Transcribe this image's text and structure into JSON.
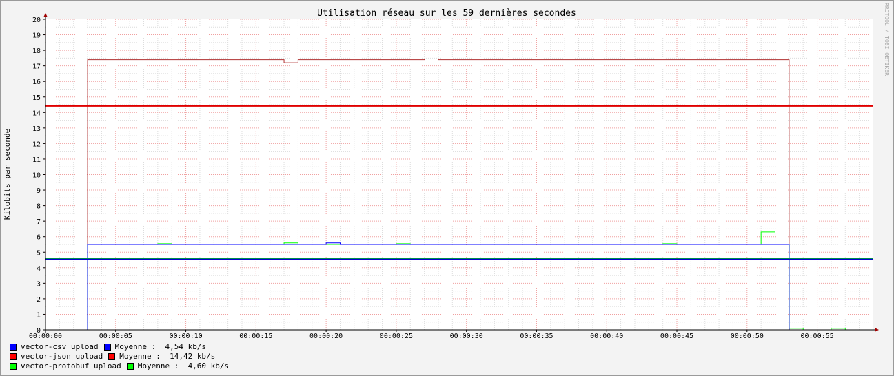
{
  "chart_data": {
    "type": "line",
    "title": "Utilisation réseau sur les 59 dernières secondes",
    "ylabel": "Kilobits par seconde",
    "watermark": "RRDTOOL / TOBI OETIKER",
    "ylim": [
      0,
      20
    ],
    "xlim_seconds": [
      0,
      59
    ],
    "y_ticks": [
      "0",
      "1",
      "2",
      "3",
      "4",
      "5",
      "6",
      "7",
      "8",
      "9",
      "10",
      "11",
      "12",
      "13",
      "14",
      "15",
      "16",
      "17",
      "18",
      "19",
      "20"
    ],
    "x_ticks": [
      "00:00:00",
      "00:00:05",
      "00:00:10",
      "00:00:15",
      "00:00:20",
      "00:00:25",
      "00:00:30",
      "00:00:35",
      "00:00:40",
      "00:00:45",
      "00:00:50",
      "00:00:55"
    ],
    "grid": true,
    "legend_position": "bottom-left",
    "series": [
      {
        "name": "vector-csv upload",
        "color": "#0000ff",
        "x": [
          0,
          3,
          4,
          5,
          6,
          7,
          8,
          9,
          10,
          11,
          12,
          13,
          14,
          15,
          16,
          17,
          18,
          19,
          20,
          21,
          22,
          23,
          24,
          25,
          26,
          27,
          28,
          29,
          30,
          31,
          32,
          33,
          34,
          35,
          36,
          37,
          38,
          39,
          40,
          41,
          42,
          43,
          44,
          45,
          46,
          47,
          48,
          49,
          50,
          51,
          52,
          53,
          54,
          55,
          56,
          57,
          58,
          59
        ],
        "values": [
          0,
          5.5,
          5.5,
          5.5,
          5.5,
          5.5,
          5.5,
          5.5,
          5.5,
          5.5,
          5.5,
          5.5,
          5.5,
          5.5,
          5.5,
          5.5,
          5.5,
          5.5,
          5.6,
          5.5,
          5.5,
          5.5,
          5.5,
          5.5,
          5.5,
          5.5,
          5.5,
          5.5,
          5.5,
          5.5,
          5.5,
          5.5,
          5.5,
          5.5,
          5.5,
          5.5,
          5.5,
          5.5,
          5.5,
          5.5,
          5.5,
          5.5,
          5.5,
          5.5,
          5.5,
          5.5,
          5.5,
          5.5,
          5.5,
          5.5,
          5.5,
          0,
          0,
          0,
          0,
          0,
          0,
          0
        ],
        "avg_label": "Moyenne :",
        "avg_value": 4.54,
        "avg_text": "4,54 kb/s"
      },
      {
        "name": "vector-json upload",
        "color": "#ff0000",
        "x": [
          0,
          3,
          4,
          5,
          6,
          7,
          8,
          9,
          10,
          11,
          12,
          13,
          14,
          15,
          16,
          17,
          18,
          19,
          20,
          21,
          22,
          23,
          24,
          25,
          26,
          27,
          28,
          29,
          30,
          31,
          32,
          33,
          34,
          35,
          36,
          37,
          38,
          39,
          40,
          41,
          42,
          43,
          44,
          45,
          46,
          47,
          48,
          49,
          50,
          51,
          52,
          53,
          54,
          55,
          56,
          57,
          58,
          59
        ],
        "values": [
          0,
          17.4,
          17.4,
          17.4,
          17.4,
          17.4,
          17.4,
          17.4,
          17.4,
          17.4,
          17.4,
          17.4,
          17.4,
          17.4,
          17.4,
          17.2,
          17.4,
          17.4,
          17.4,
          17.4,
          17.4,
          17.4,
          17.4,
          17.4,
          17.4,
          17.45,
          17.4,
          17.4,
          17.4,
          17.4,
          17.4,
          17.4,
          17.4,
          17.4,
          17.4,
          17.4,
          17.4,
          17.4,
          17.4,
          17.4,
          17.4,
          17.4,
          17.4,
          17.4,
          17.4,
          17.4,
          17.4,
          17.4,
          17.4,
          17.4,
          17.4,
          0,
          0,
          0,
          0,
          0,
          0,
          0
        ],
        "avg_label": "Moyenne :",
        "avg_value": 14.42,
        "avg_text": "14,42 kb/s"
      },
      {
        "name": "vector-protobuf upload",
        "color": "#00ff00",
        "x": [
          0,
          3,
          4,
          5,
          6,
          7,
          8,
          9,
          10,
          11,
          12,
          13,
          14,
          15,
          16,
          17,
          18,
          19,
          20,
          21,
          22,
          23,
          24,
          25,
          26,
          27,
          28,
          29,
          30,
          31,
          32,
          33,
          34,
          35,
          36,
          37,
          38,
          39,
          40,
          41,
          42,
          43,
          44,
          45,
          46,
          47,
          48,
          49,
          50,
          51,
          52,
          53,
          54,
          55,
          56,
          57,
          58,
          59
        ],
        "values": [
          0,
          5.5,
          5.5,
          5.5,
          5.5,
          5.5,
          5.55,
          5.5,
          5.5,
          5.5,
          5.5,
          5.5,
          5.5,
          5.5,
          5.5,
          5.6,
          5.5,
          5.5,
          5.5,
          5.5,
          5.5,
          5.5,
          5.5,
          5.55,
          5.5,
          5.5,
          5.5,
          5.5,
          5.5,
          5.5,
          5.5,
          5.5,
          5.5,
          5.5,
          5.5,
          5.5,
          5.5,
          5.5,
          5.5,
          5.5,
          5.5,
          5.5,
          5.55,
          5.5,
          5.5,
          5.5,
          5.5,
          5.5,
          5.5,
          6.3,
          5.5,
          0.1,
          0,
          0,
          0.1,
          0,
          0,
          0
        ],
        "avg_label": "Moyenne :",
        "avg_value": 4.6,
        "avg_text": "4,60 kb/s"
      }
    ]
  }
}
